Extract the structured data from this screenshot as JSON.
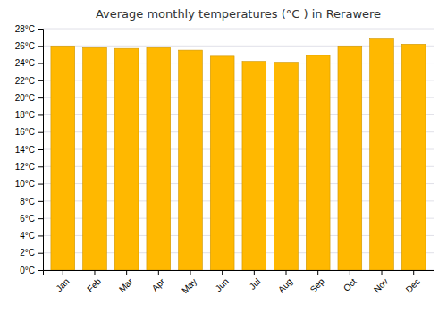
{
  "chart_data": {
    "type": "bar",
    "title": "Average monthly temperatures (°C ) in Rerawere",
    "categories": [
      "Jan",
      "Feb",
      "Mar",
      "Apr",
      "May",
      "Jun",
      "Jul",
      "Aug",
      "Sep",
      "Oct",
      "Nov",
      "Dec"
    ],
    "values": [
      26.0,
      25.8,
      25.7,
      25.8,
      25.5,
      24.8,
      24.2,
      24.1,
      24.9,
      26.0,
      26.8,
      26.2
    ],
    "color": "#FFB800",
    "ylim": [
      0,
      28
    ],
    "yticks": [
      {
        "value": 0,
        "label": "0°C"
      },
      {
        "value": 2,
        "label": "2°C"
      },
      {
        "value": 4,
        "label": "4°C"
      },
      {
        "value": 6,
        "label": "6°C"
      },
      {
        "value": 8,
        "label": "8°C"
      },
      {
        "value": 10,
        "label": "10°C"
      },
      {
        "value": 12,
        "label": "12°C"
      },
      {
        "value": 14,
        "label": "14°C"
      },
      {
        "value": 16,
        "label": "16°C"
      },
      {
        "value": 18,
        "label": "18°C"
      },
      {
        "value": 20,
        "label": "20°C"
      },
      {
        "value": 22,
        "label": "22°C"
      },
      {
        "value": 24,
        "label": "24°C"
      },
      {
        "value": 26,
        "label": "26°C"
      },
      {
        "value": 28,
        "label": "28°C"
      }
    ],
    "grid": true
  }
}
